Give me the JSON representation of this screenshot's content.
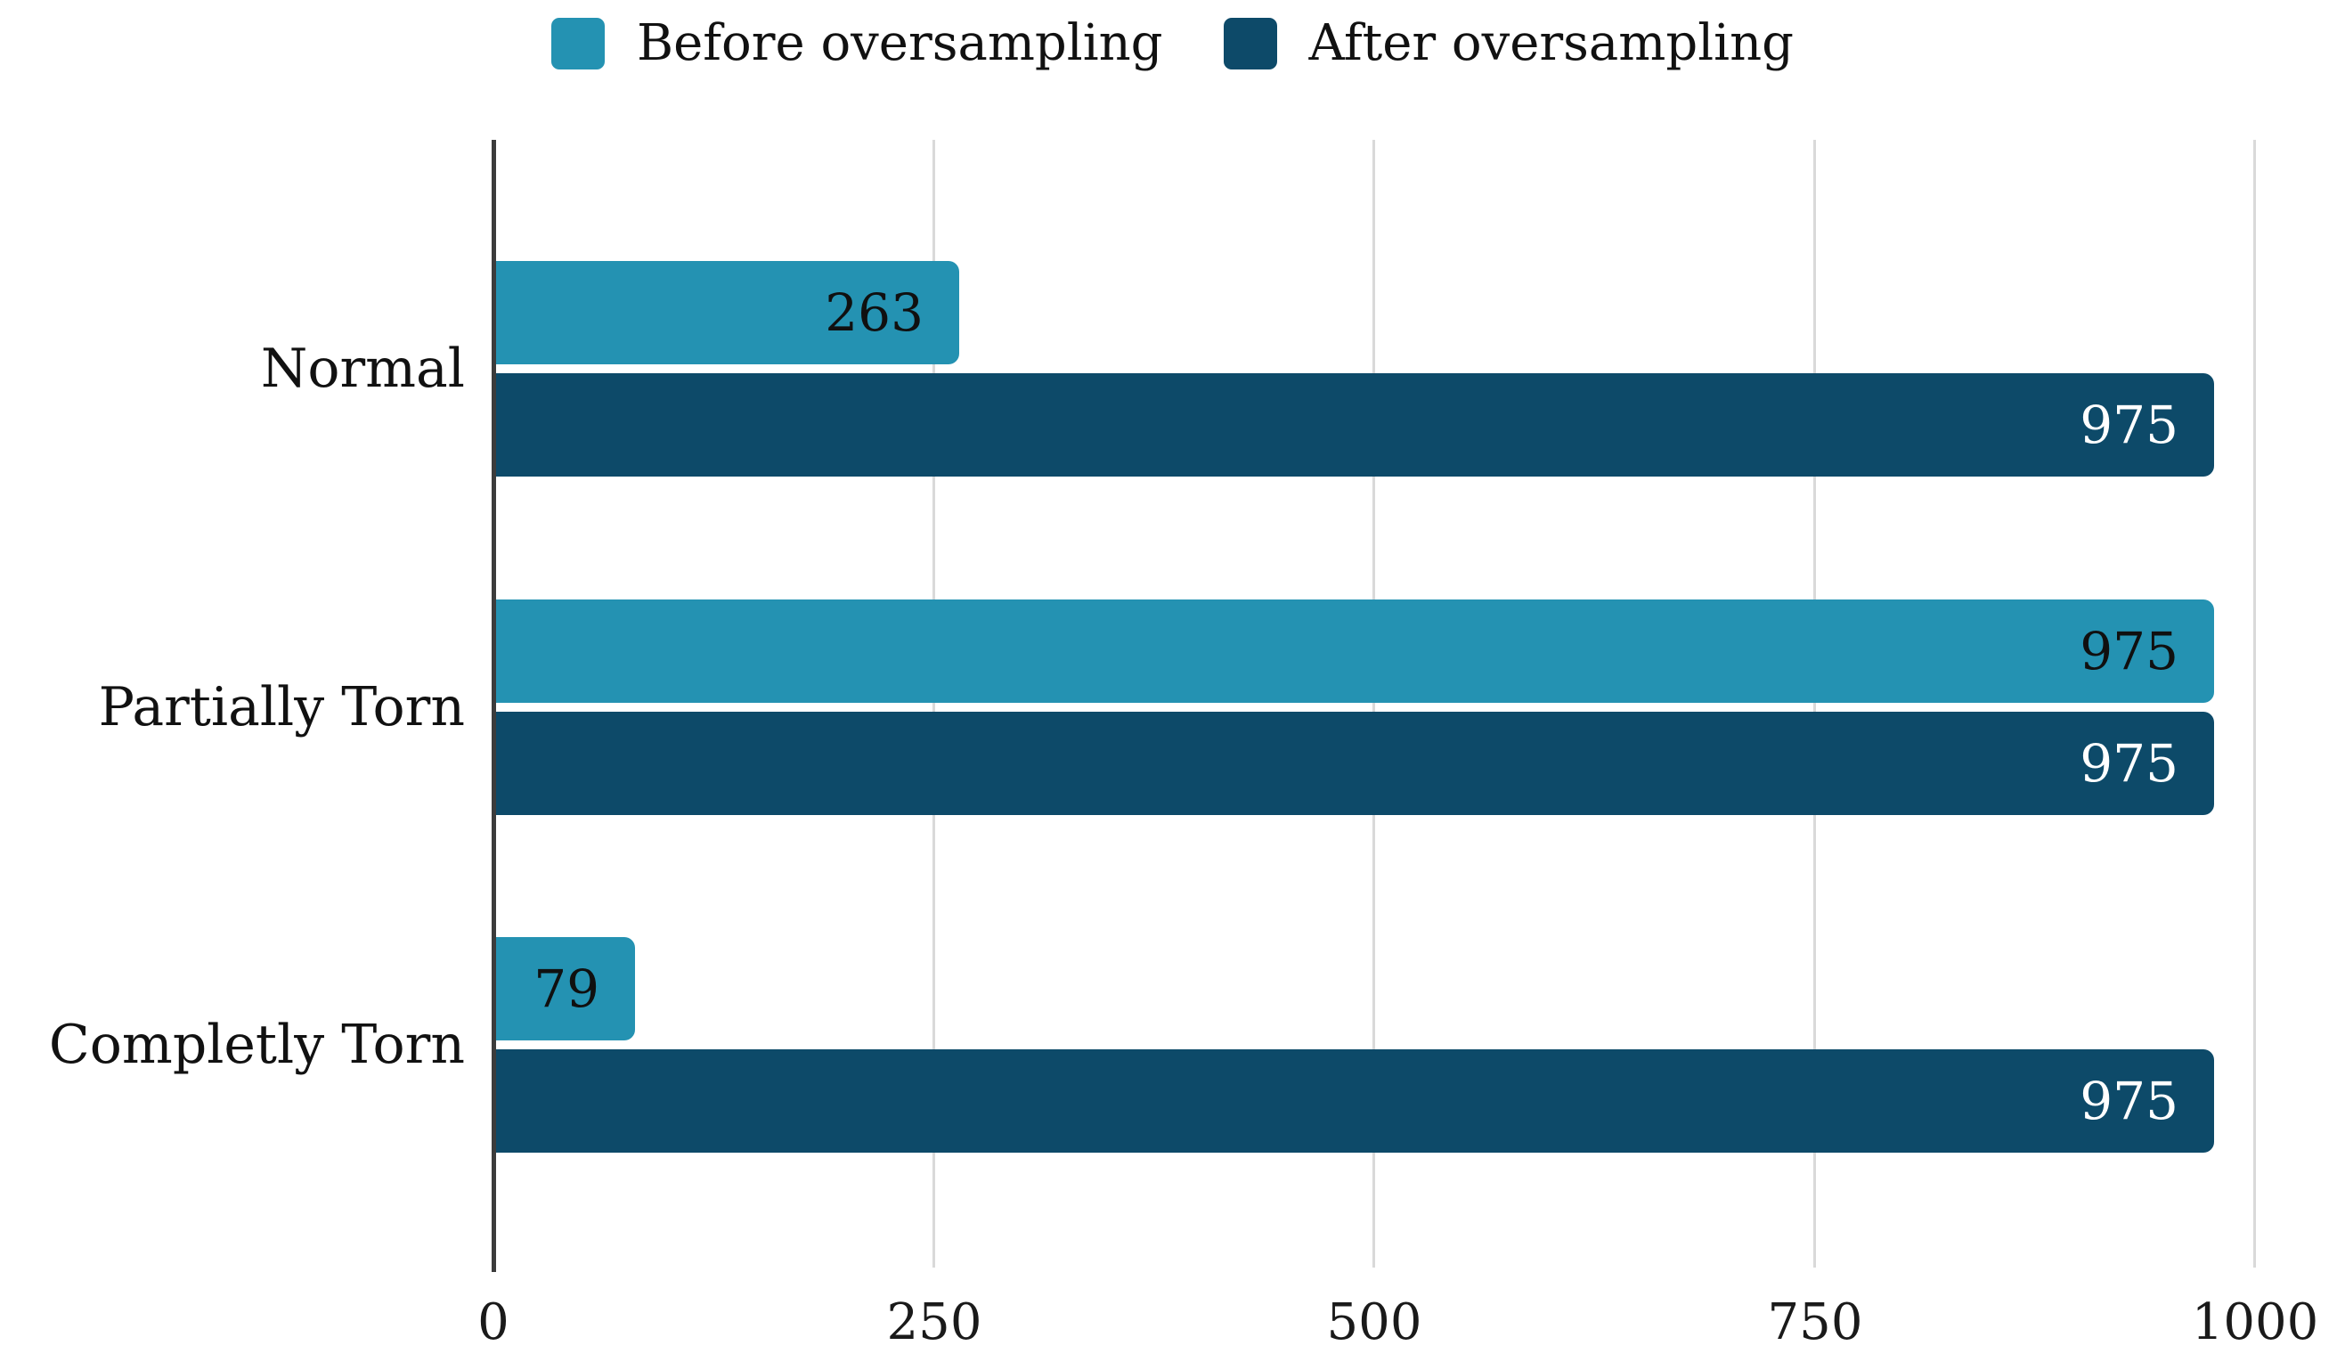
{
  "legend": {
    "items": [
      {
        "label": "Before oversampling",
        "color": "#2492b2"
      },
      {
        "label": "After oversampling",
        "color": "#0d4a69"
      }
    ]
  },
  "chart_data": {
    "type": "bar",
    "orientation": "horizontal",
    "title": "",
    "categories": [
      "Normal",
      "Partially Torn",
      "Completly Torn"
    ],
    "series": [
      {
        "name": "Before oversampling",
        "color": "#2492b2",
        "label_color": "#101010",
        "values": [
          263,
          975,
          79
        ]
      },
      {
        "name": "After oversampling",
        "color": "#0d4a69",
        "label_color": "#ffffff",
        "values": [
          975,
          975,
          975
        ]
      }
    ],
    "xlim": [
      0,
      1000
    ],
    "xticks": [
      0,
      250,
      500,
      750,
      1000
    ],
    "grid": true,
    "gridline_color": "#d9d9d9",
    "axis_color": "#3c3c3c",
    "legend_position": "top",
    "value_labels": "inside-end"
  }
}
